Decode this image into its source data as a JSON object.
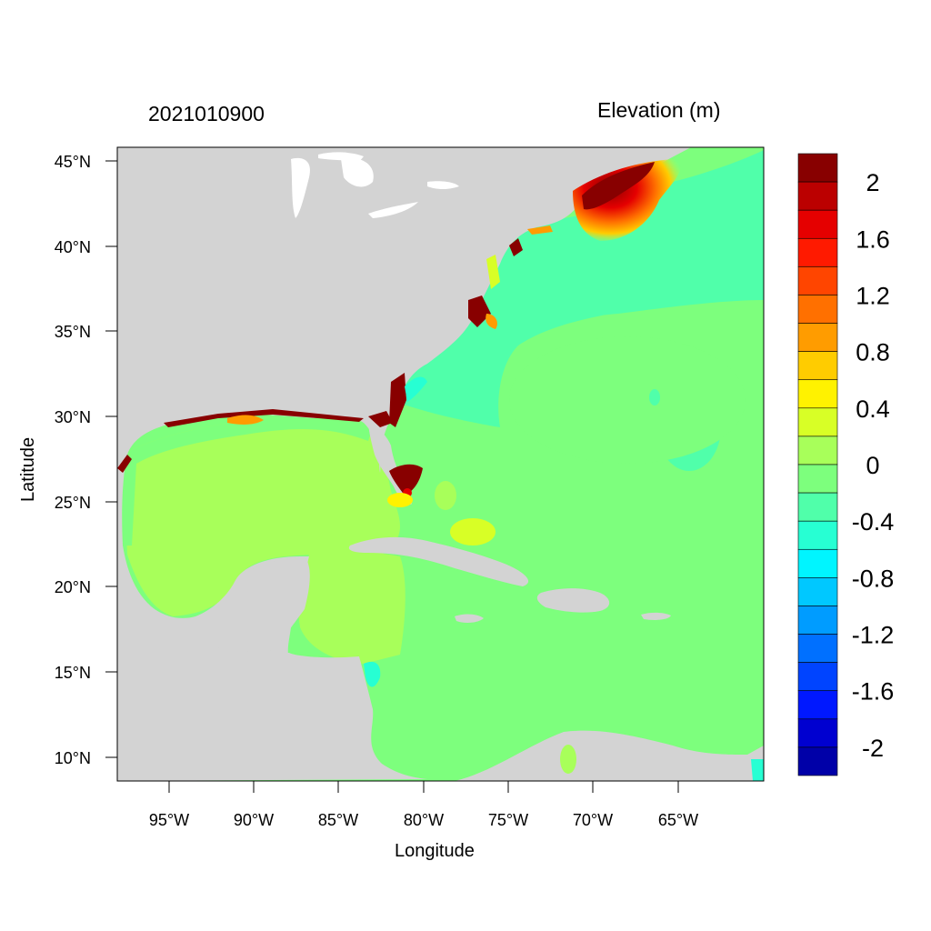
{
  "header": {
    "run_label": "2021010900",
    "variable_label": "Elevation (m)"
  },
  "axes": {
    "xlabel": "Longitude",
    "ylabel": "Latitude",
    "lat_ticks": [
      "45°N",
      "40°N",
      "35°N",
      "30°N",
      "25°N",
      "20°N",
      "15°N",
      "10°N"
    ],
    "lon_ticks": [
      "95°W",
      "90°W",
      "85°W",
      "80°W",
      "75°W",
      "70°W",
      "65°W"
    ]
  },
  "colorbar": {
    "labels": [
      "2",
      "1.6",
      "1.2",
      "0.8",
      "0.4",
      "0",
      "-0.4",
      "-0.8",
      "-1.2",
      "-1.6",
      "-2"
    ],
    "colors": [
      "#880000",
      "#bb0000",
      "#e50000",
      "#ff1a00",
      "#ff4500",
      "#ff7000",
      "#ff9c00",
      "#ffcc00",
      "#fff200",
      "#d8ff26",
      "#a8ff5a",
      "#7dff7d",
      "#50ffaa",
      "#27ffd3",
      "#00f5ff",
      "#00c8ff",
      "#009cff",
      "#0070ff",
      "#0044ff",
      "#0018ff",
      "#0000d0",
      "#0000a8"
    ]
  },
  "map": {
    "land_color": "#d3d3d3",
    "ocean_colors": {
      "atlantic": "#7dff7d",
      "atlantic_center": "#50ffaa",
      "gulf": "#a8ff5a",
      "caribbean": "#7dff7d",
      "high_surge": "#880000"
    }
  }
}
